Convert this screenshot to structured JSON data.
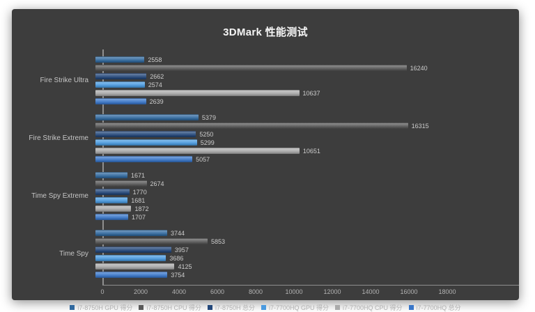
{
  "title": "3DMark 性能测试",
  "panel": {
    "background": "#3d3d3d",
    "page_background": "#ffffff"
  },
  "chart_data": {
    "type": "bar",
    "orientation": "horizontal",
    "title": "3DMark 性能测试",
    "categories": [
      "Fire Strike Ultra",
      "Fire Strike Extreme",
      "Time Spy Extreme",
      "Time Spy"
    ],
    "series": [
      {
        "name": "i7-8750H GPU 得分",
        "color": "#31699f",
        "values": [
          2558,
          5379,
          1671,
          3744
        ]
      },
      {
        "name": "i7-8750H CPU 得分",
        "color": "#595959",
        "values": [
          16240,
          16315,
          2674,
          5853
        ]
      },
      {
        "name": "i7-8750H 总分",
        "color": "#24487b",
        "values": [
          2662,
          5250,
          1770,
          3957
        ]
      },
      {
        "name": "i7-7700HQ GPU 得分",
        "color": "#4b9be0",
        "values": [
          2574,
          5299,
          1681,
          3686
        ]
      },
      {
        "name": "i7-7700HQ CPU 得分",
        "color": "#ababab",
        "values": [
          10637,
          10651,
          1872,
          4125
        ]
      },
      {
        "name": "i7-7700HQ 总分",
        "color": "#3a77c9",
        "values": [
          2639,
          5057,
          1707,
          3754
        ]
      }
    ],
    "xlabel": "",
    "ylabel": "",
    "xlim": [
      0,
      18000
    ],
    "x_ticks": [
      0,
      2000,
      4000,
      6000,
      8000,
      10000,
      12000,
      14000,
      16000,
      18000
    ],
    "grid": false,
    "legend_position": "bottom",
    "value_labels": true,
    "axis_color": "#8f8f8f",
    "tick_label_color": "#b3b3b3",
    "value_label_color": "#cdcdcd",
    "category_label_color": "#c6c6c6"
  }
}
